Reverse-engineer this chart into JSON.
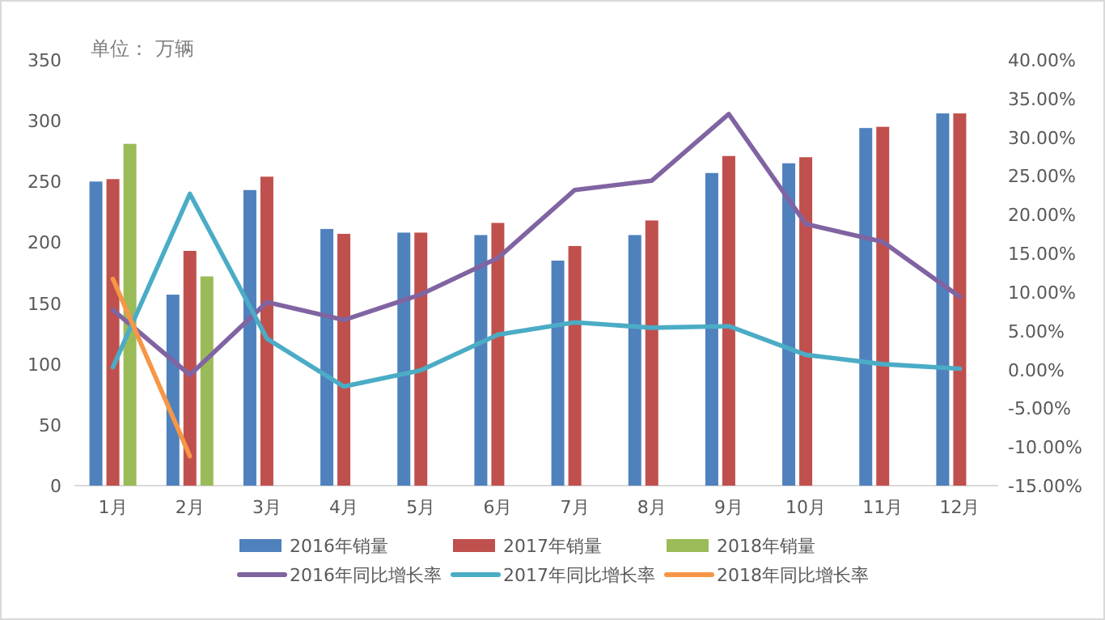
{
  "chart_data": {
    "type": "bar",
    "annotations": [
      "单位： 万辆"
    ],
    "categories": [
      "1月",
      "2月",
      "3月",
      "4月",
      "5月",
      "6月",
      "7月",
      "8月",
      "9月",
      "10月",
      "11月",
      "12月"
    ],
    "series": [
      {
        "name": "2016年销量",
        "color": "#4f81bd",
        "values": [
          250,
          157,
          243,
          211,
          208,
          206,
          185,
          206,
          257,
          265,
          294,
          306
        ]
      },
      {
        "name": "2017年销量",
        "color": "#c0504d",
        "values": [
          252,
          193,
          254,
          207,
          208,
          216,
          197,
          218,
          271,
          270,
          295,
          306
        ]
      },
      {
        "name": "2018年销量",
        "color": "#9bbb59",
        "values": [
          281,
          172,
          null,
          null,
          null,
          null,
          null,
          null,
          null,
          null,
          null,
          null
        ]
      },
      {
        "name": "2016年同比增长率",
        "type": "line",
        "axis": "y2",
        "color": "#8064a2",
        "values": [
          7.7,
          -0.7,
          8.7,
          6.4,
          9.7,
          14.4,
          23.2,
          24.4,
          33.0,
          18.8,
          16.5,
          9.4
        ]
      },
      {
        "name": "2017年同比增长率",
        "type": "line",
        "axis": "y2",
        "color": "#4bacc6",
        "values": [
          0.3,
          22.7,
          4.0,
          -2.2,
          -0.1,
          4.5,
          6.1,
          5.4,
          5.6,
          1.9,
          0.7,
          0.1
        ]
      },
      {
        "name": "2018年同比增长率",
        "type": "line",
        "axis": "y2",
        "color": "#f79646",
        "values": [
          11.7,
          -11.2,
          null,
          null,
          null,
          null,
          null,
          null,
          null,
          null,
          null,
          null
        ]
      }
    ],
    "ylim": [
      0,
      350
    ],
    "yticks": [
      0,
      50,
      100,
      150,
      200,
      250,
      300,
      350
    ],
    "y2lim": [
      -15,
      40
    ],
    "y2ticks": [
      {
        "value": -15,
        "label": "-15.00%"
      },
      {
        "value": -10,
        "label": "-10.00%"
      },
      {
        "value": -5,
        "label": "-5.00%"
      },
      {
        "value": 0,
        "label": "0.00%"
      },
      {
        "value": 5,
        "label": "5.00%"
      },
      {
        "value": 10,
        "label": "10.00%"
      },
      {
        "value": 15,
        "label": "15.00%"
      },
      {
        "value": 20,
        "label": "20.00%"
      },
      {
        "value": 25,
        "label": "25.00%"
      },
      {
        "value": 30,
        "label": "30.00%"
      },
      {
        "value": 35,
        "label": "35.00%"
      },
      {
        "value": 40,
        "label": "40.00%"
      }
    ],
    "legend": "bottom"
  }
}
